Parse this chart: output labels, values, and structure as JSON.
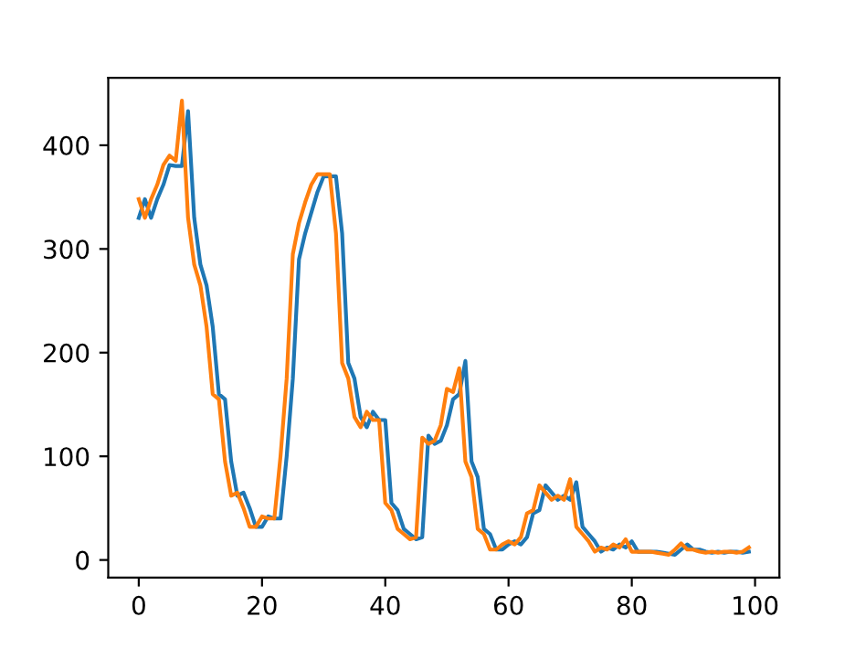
{
  "chart_data": {
    "type": "line",
    "x": [
      0,
      1,
      2,
      3,
      4,
      5,
      6,
      7,
      8,
      9,
      10,
      11,
      12,
      13,
      14,
      15,
      16,
      17,
      18,
      19,
      20,
      21,
      22,
      23,
      24,
      25,
      26,
      27,
      28,
      29,
      30,
      31,
      32,
      33,
      34,
      35,
      36,
      37,
      38,
      39,
      40,
      41,
      42,
      43,
      44,
      45,
      46,
      47,
      48,
      49,
      50,
      51,
      52,
      53,
      54,
      55,
      56,
      57,
      58,
      59,
      60,
      61,
      62,
      63,
      64,
      65,
      66,
      67,
      68,
      69,
      70,
      71,
      72,
      73,
      74,
      75,
      76,
      77,
      78,
      79,
      80,
      81,
      82,
      83,
      84,
      85,
      86,
      87,
      88,
      89,
      90,
      91,
      92,
      93,
      94,
      95,
      96,
      97,
      98,
      99
    ],
    "series": [
      {
        "color": "#1f77b4",
        "values": [
          330,
          348,
          330,
          348,
          362,
          381,
          380,
          380,
          433,
          330,
          285,
          265,
          225,
          160,
          155,
          95,
          62,
          65,
          50,
          32,
          32,
          42,
          40,
          40,
          100,
          175,
          290,
          315,
          335,
          355,
          370,
          370,
          370,
          315,
          190,
          175,
          138,
          128,
          143,
          135,
          135,
          55,
          48,
          30,
          25,
          20,
          22,
          120,
          112,
          115,
          130,
          155,
          160,
          192,
          95,
          80,
          30,
          25,
          10,
          10,
          15,
          18,
          15,
          22,
          45,
          48,
          72,
          65,
          58,
          62,
          58,
          75,
          32,
          25,
          18,
          8,
          12,
          10,
          15,
          12,
          18,
          8,
          8,
          8,
          8,
          7,
          6,
          5,
          10,
          15,
          10,
          10,
          8,
          7,
          8,
          7,
          8,
          8,
          7,
          8
        ]
      },
      {
        "color": "#ff7f0e",
        "values": [
          348,
          330,
          348,
          362,
          381,
          390,
          385,
          443,
          330,
          285,
          265,
          225,
          160,
          155,
          95,
          62,
          65,
          50,
          32,
          32,
          42,
          40,
          40,
          100,
          175,
          295,
          325,
          345,
          362,
          372,
          372,
          372,
          315,
          190,
          175,
          138,
          128,
          143,
          135,
          135,
          55,
          48,
          30,
          25,
          20,
          22,
          118,
          112,
          115,
          130,
          165,
          162,
          185,
          95,
          80,
          30,
          25,
          10,
          10,
          15,
          18,
          15,
          22,
          45,
          48,
          72,
          65,
          58,
          62,
          58,
          78,
          32,
          25,
          18,
          8,
          12,
          10,
          15,
          12,
          20,
          8,
          8,
          8,
          8,
          7,
          6,
          5,
          10,
          16,
          10,
          10,
          8,
          7,
          8,
          7,
          8,
          8,
          7,
          8,
          12
        ]
      }
    ],
    "xlim": [
      -4.95,
      103.95
    ],
    "ylim": [
      -17,
      465
    ],
    "xticks": [
      0,
      20,
      40,
      60,
      80,
      100
    ],
    "yticks": [
      0,
      100,
      200,
      300,
      400
    ],
    "grid": false,
    "legend": false
  }
}
